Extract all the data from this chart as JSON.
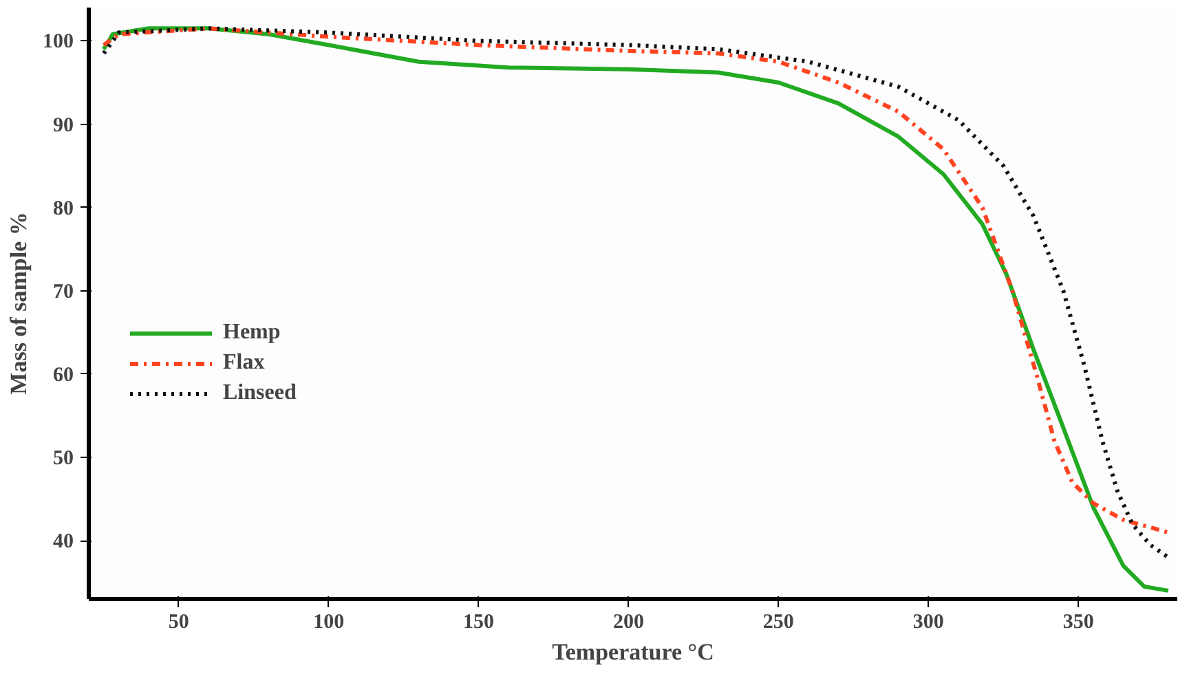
{
  "chart_data": {
    "type": "line",
    "xlabel": "Temperature °C",
    "ylabel": "Mass of sample %",
    "xlim": [
      20,
      383
    ],
    "ylim": [
      33,
      104
    ],
    "xticks": [
      50,
      100,
      150,
      200,
      250,
      300,
      350
    ],
    "yticks": [
      40,
      50,
      60,
      70,
      80,
      90,
      100
    ],
    "grid": false,
    "legend": "left",
    "marker": "none",
    "series": [
      {
        "name": "Hemp",
        "color": "#22aa22",
        "line_style": "solid",
        "x": [
          25,
          28,
          40,
          60,
          80,
          100,
          130,
          160,
          200,
          230,
          250,
          270,
          290,
          305,
          318,
          326,
          335,
          344,
          355,
          365,
          372,
          380
        ],
        "values": [
          99,
          100.8,
          101.5,
          101.5,
          100.8,
          99.5,
          97.5,
          96.8,
          96.6,
          96.2,
          95,
          92.5,
          88.5,
          84,
          78,
          72,
          63,
          54.5,
          44,
          37,
          34.5,
          34
        ]
      },
      {
        "name": "Flax",
        "color": "#ff4422",
        "line_style": "dashdot",
        "x": [
          25,
          30,
          60,
          100,
          150,
          200,
          230,
          250,
          270,
          290,
          305,
          318,
          328,
          336,
          342,
          348,
          355,
          365,
          380
        ],
        "values": [
          99.5,
          100.8,
          101.5,
          100.5,
          99.5,
          98.8,
          98.5,
          97.5,
          95,
          91.5,
          87,
          80,
          70,
          60,
          52,
          47,
          44.5,
          42.5,
          41
        ]
      },
      {
        "name": "Linseed",
        "color": "#111111",
        "line_style": "dotted",
        "x": [
          25,
          30,
          60,
          100,
          150,
          200,
          230,
          260,
          290,
          310,
          325,
          335,
          345,
          352,
          358,
          363,
          368,
          374,
          380
        ],
        "values": [
          98.5,
          101,
          101.5,
          101,
          100,
          99.5,
          99,
          97.5,
          94.5,
          90.5,
          85,
          79,
          70,
          61,
          52,
          46,
          42,
          39.5,
          38
        ]
      }
    ]
  }
}
